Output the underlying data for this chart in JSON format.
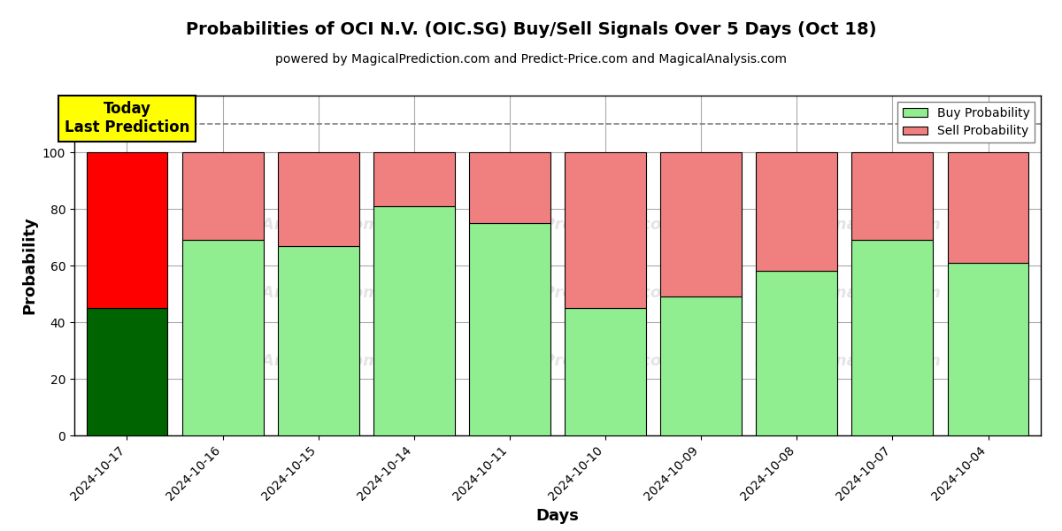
{
  "title": "Probabilities of OCI N.V. (OIC.SG) Buy/Sell Signals Over 5 Days (Oct 18)",
  "subtitle": "powered by MagicalPrediction.com and Predict-Price.com and MagicalAnalysis.com",
  "xlabel": "Days",
  "ylabel": "Probability",
  "dates": [
    "2024-10-17",
    "2024-10-16",
    "2024-10-15",
    "2024-10-14",
    "2024-10-11",
    "2024-10-10",
    "2024-10-09",
    "2024-10-08",
    "2024-10-07",
    "2024-10-04"
  ],
  "buy_values": [
    45,
    69,
    67,
    81,
    75,
    45,
    49,
    58,
    69,
    61
  ],
  "sell_values": [
    55,
    31,
    33,
    19,
    25,
    55,
    51,
    42,
    31,
    39
  ],
  "today_buy_color": "#006400",
  "today_sell_color": "#FF0000",
  "normal_buy_color": "#90EE90",
  "normal_sell_color": "#F08080",
  "legend_buy_color": "#90EE90",
  "legend_sell_color": "#F08080",
  "today_annotation_bg": "#FFFF00",
  "today_annotation_text": "Today\nLast Prediction",
  "dashed_line_y": 110,
  "ylim": [
    0,
    120
  ],
  "yticks": [
    0,
    20,
    40,
    60,
    80,
    100
  ],
  "bar_width": 0.85,
  "grid_color": "#AAAAAA",
  "background_color": "#FFFFFF",
  "figsize": [
    12,
    6
  ],
  "dpi": 100
}
